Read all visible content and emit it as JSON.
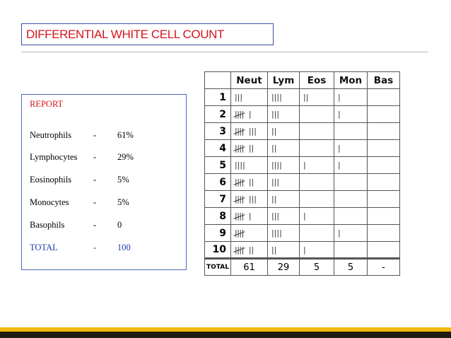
{
  "title": "DIFFERENTIAL WHITE CELL COUNT",
  "report": {
    "heading": "REPORT",
    "rows": [
      {
        "name": "Neutrophils",
        "dash": "-",
        "value": "61%"
      },
      {
        "name": "Lymphocytes",
        "dash": "-",
        "value": "29%"
      },
      {
        "name": "Eosinophils",
        "dash": "-",
        "value": "5%"
      },
      {
        "name": "Monocytes",
        "dash": "-",
        "value": "5%"
      },
      {
        "name": "Basophils",
        "dash": "-",
        "value": "0"
      }
    ],
    "total": {
      "name": "TOTAL",
      "dash": "-",
      "value": "100"
    }
  },
  "tally": {
    "headers": [
      "Neut",
      "Lym",
      "Eos",
      "Mon",
      "Bas"
    ],
    "rows": [
      {
        "n": "1",
        "neut": 3,
        "lym": 4,
        "eos": 2,
        "mon": 1,
        "bas": 0
      },
      {
        "n": "2",
        "neut": 6,
        "lym": 3,
        "eos": 0,
        "mon": 1,
        "bas": 0
      },
      {
        "n": "3",
        "neut": 8,
        "lym": 2,
        "eos": 0,
        "mon": 0,
        "bas": 0
      },
      {
        "n": "4",
        "neut": 7,
        "lym": 2,
        "eos": 0,
        "mon": 1,
        "bas": 0
      },
      {
        "n": "5",
        "neut": 4,
        "lym": 4,
        "eos": 1,
        "mon": 1,
        "bas": 0
      },
      {
        "n": "6",
        "neut": 7,
        "lym": 3,
        "eos": 0,
        "mon": 0,
        "bas": 0
      },
      {
        "n": "7",
        "neut": 8,
        "lym": 2,
        "eos": 0,
        "mon": 0,
        "bas": 0
      },
      {
        "n": "8",
        "neut": 6,
        "lym": 3,
        "eos": 1,
        "mon": 0,
        "bas": 0
      },
      {
        "n": "9",
        "neut": 5,
        "lym": 4,
        "eos": 0,
        "mon": 1,
        "bas": 0
      },
      {
        "n": "10",
        "neut": 7,
        "lym": 2,
        "eos": 1,
        "mon": 0,
        "bas": 0
      }
    ],
    "total_label": "TOTAL",
    "totals": [
      "61",
      "29",
      "5",
      "5",
      "-"
    ]
  }
}
